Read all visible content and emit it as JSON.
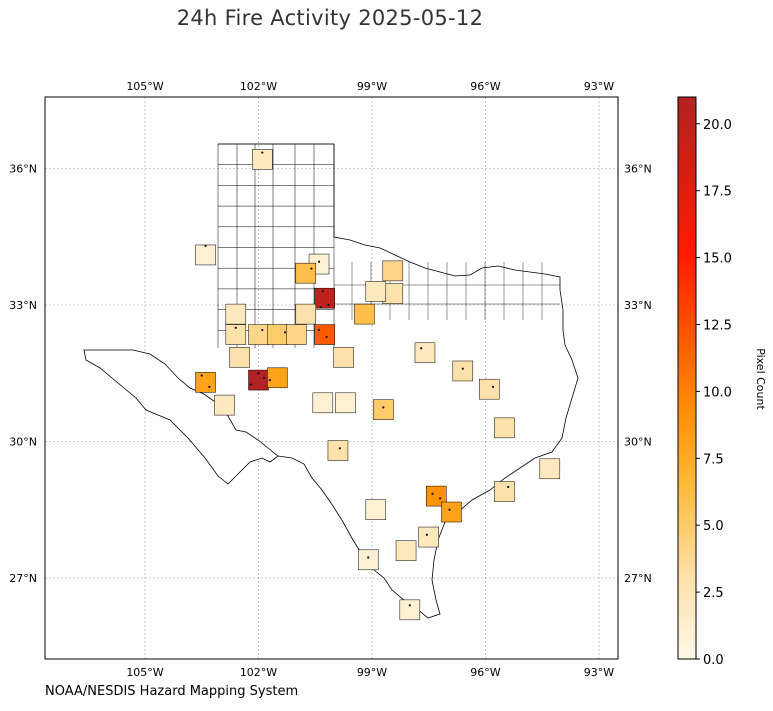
{
  "title": "24h Fire Activity 2025-05-12",
  "credit": "NOAA/NESDIS Hazard Mapping System",
  "map": {
    "projection": "PlateCarree",
    "lon_range": [
      -108,
      -92.5
    ],
    "lat_range": [
      24.5,
      37.0
    ],
    "lon_ticks": [
      {
        "value": -105,
        "label": "105°W"
      },
      {
        "value": -102,
        "label": "102°W"
      },
      {
        "value": -99,
        "label": "99°W"
      },
      {
        "value": -96,
        "label": "96°W"
      },
      {
        "value": -93,
        "label": "93°W"
      }
    ],
    "lat_ticks": [
      {
        "value": 36,
        "label": "36°N"
      },
      {
        "value": 33,
        "label": "33°N"
      },
      {
        "value": 30,
        "label": "30°N"
      },
      {
        "value": 27,
        "label": "27°N"
      }
    ],
    "gridlines": true
  },
  "colorbar": {
    "label": "Pixel Count",
    "min": 0,
    "max": 21,
    "colormap": [
      "#fff8e7",
      "#fde0a8",
      "#ffb732",
      "#ff8c00",
      "#ff1a00",
      "#b22222"
    ],
    "ticks": [
      "0.0",
      "2.5",
      "5.0",
      "7.5",
      "10.0",
      "12.5",
      "15.0",
      "17.5",
      "20.0"
    ],
    "tick_values": [
      0,
      2.5,
      5,
      7.5,
      10,
      12.5,
      15,
      17.5,
      20
    ]
  },
  "hot_counties": [
    {
      "lon": -101.9,
      "lat": 36.2,
      "count": 2
    },
    {
      "lon": -103.4,
      "lat": 34.1,
      "count": 1
    },
    {
      "lon": -100.4,
      "lat": 33.9,
      "count": 1
    },
    {
      "lon": -100.75,
      "lat": 33.7,
      "count": 6
    },
    {
      "lon": -100.25,
      "lat": 33.15,
      "count": 20
    },
    {
      "lon": -98.45,
      "lat": 33.75,
      "count": 4
    },
    {
      "lon": -98.45,
      "lat": 33.25,
      "count": 3
    },
    {
      "lon": -98.9,
      "lat": 33.3,
      "count": 2
    },
    {
      "lon": -102.6,
      "lat": 32.8,
      "count": 2
    },
    {
      "lon": -102.6,
      "lat": 32.35,
      "count": 3
    },
    {
      "lon": -102.0,
      "lat": 32.35,
      "count": 4
    },
    {
      "lon": -101.5,
      "lat": 32.35,
      "count": 5
    },
    {
      "lon": -101.0,
      "lat": 32.35,
      "count": 4
    },
    {
      "lon": -100.75,
      "lat": 32.8,
      "count": 3
    },
    {
      "lon": -100.25,
      "lat": 32.35,
      "count": 12
    },
    {
      "lon": -99.2,
      "lat": 32.8,
      "count": 6
    },
    {
      "lon": -99.75,
      "lat": 31.85,
      "count": 3
    },
    {
      "lon": -102.5,
      "lat": 31.85,
      "count": 3
    },
    {
      "lon": -102.0,
      "lat": 31.35,
      "count": 21
    },
    {
      "lon": -101.5,
      "lat": 31.4,
      "count": 8
    },
    {
      "lon": -103.4,
      "lat": 31.3,
      "count": 8
    },
    {
      "lon": -102.9,
      "lat": 30.8,
      "count": 2
    },
    {
      "lon": -100.3,
      "lat": 30.85,
      "count": 1
    },
    {
      "lon": -99.7,
      "lat": 30.85,
      "count": 1
    },
    {
      "lon": -98.7,
      "lat": 30.7,
      "count": 5
    },
    {
      "lon": -97.6,
      "lat": 31.95,
      "count": 2
    },
    {
      "lon": -96.6,
      "lat": 31.55,
      "count": 3
    },
    {
      "lon": -95.9,
      "lat": 31.15,
      "count": 3
    },
    {
      "lon": -95.5,
      "lat": 30.3,
      "count": 3
    },
    {
      "lon": -97.3,
      "lat": 28.8,
      "count": 9
    },
    {
      "lon": -96.9,
      "lat": 28.45,
      "count": 8
    },
    {
      "lon": -95.5,
      "lat": 28.9,
      "count": 3
    },
    {
      "lon": -94.3,
      "lat": 29.4,
      "count": 2
    },
    {
      "lon": -99.9,
      "lat": 29.8,
      "count": 3
    },
    {
      "lon": -98.9,
      "lat": 28.5,
      "count": 1
    },
    {
      "lon": -98.1,
      "lat": 27.6,
      "count": 2
    },
    {
      "lon": -97.5,
      "lat": 27.9,
      "count": 2
    },
    {
      "lon": -99.1,
      "lat": 27.4,
      "count": 1
    },
    {
      "lon": -98.0,
      "lat": 26.3,
      "count": 1
    }
  ],
  "fire_points": [
    [
      -101.9,
      36.35
    ],
    [
      -103.4,
      34.3
    ],
    [
      -100.4,
      33.95
    ],
    [
      -100.6,
      33.8
    ],
    [
      -100.3,
      33.3
    ],
    [
      -100.15,
      33.0
    ],
    [
      -100.35,
      32.95
    ],
    [
      -100.2,
      32.3
    ],
    [
      -100.4,
      32.45
    ],
    [
      -101.9,
      32.45
    ],
    [
      -101.3,
      32.4
    ],
    [
      -102.6,
      32.5
    ],
    [
      -102.0,
      31.5
    ],
    [
      -101.85,
      31.4
    ],
    [
      -102.2,
      31.25
    ],
    [
      -101.7,
      31.35
    ],
    [
      -103.5,
      31.45
    ],
    [
      -103.3,
      31.2
    ],
    [
      -97.4,
      28.85
    ],
    [
      -97.2,
      28.75
    ],
    [
      -96.95,
      28.5
    ],
    [
      -98.7,
      30.75
    ],
    [
      -96.6,
      31.6
    ],
    [
      -95.8,
      31.2
    ],
    [
      -99.85,
      29.85
    ],
    [
      -98.0,
      26.4
    ],
    [
      -97.55,
      27.95
    ],
    [
      -99.1,
      27.45
    ],
    [
      -95.4,
      29.0
    ],
    [
      -97.7,
      32.05
    ]
  ]
}
